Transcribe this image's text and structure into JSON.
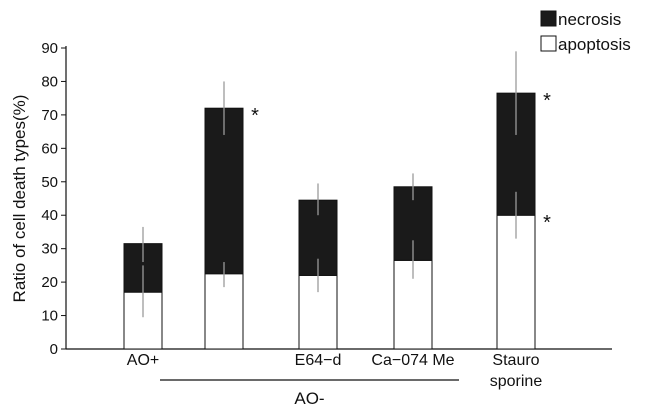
{
  "chart_data": {
    "type": "bar",
    "stacked": true,
    "ylabel": "Ratio of cell death types(%)",
    "ylim": [
      0,
      90
    ],
    "yticks": [
      0,
      10,
      20,
      30,
      40,
      50,
      60,
      70,
      80,
      90
    ],
    "categories": [
      "AO+",
      "",
      "E64−d",
      "Ca−074 Me",
      "Stauro sporine"
    ],
    "category_label_lines": [
      [
        "AO+"
      ],
      [],
      [
        "E64−d"
      ],
      [
        "Ca−074 Me"
      ],
      [
        "Stauro",
        "sporine"
      ]
    ],
    "group_label": "AO-",
    "group_indices": [
      1,
      2,
      3
    ],
    "series": [
      {
        "name": "apoptosis",
        "color": "#ffffff",
        "values": [
          17,
          22.5,
          22,
          26.5,
          40
        ],
        "error_low": [
          9.5,
          18.5,
          17,
          21,
          33
        ],
        "error_high": [
          25,
          26,
          27,
          32.5,
          47
        ]
      },
      {
        "name": "necrosis",
        "color": "#1a1a1a",
        "values": [
          14.5,
          49.5,
          22.5,
          22,
          36.5
        ],
        "error_low": [
          26,
          64,
          40,
          44.5,
          64
        ],
        "error_high": [
          36.5,
          80,
          49.5,
          52.5,
          89
        ]
      }
    ],
    "significance_marks": [
      {
        "category_index": 1,
        "series": "necrosis",
        "label": "*"
      },
      {
        "category_index": 4,
        "series": "necrosis",
        "label": "*"
      },
      {
        "category_index": 4,
        "series": "apoptosis",
        "label": "*"
      }
    ],
    "legend": {
      "position": "top-right",
      "entries": [
        {
          "label": "necrosis",
          "swatch": "#1a1a1a"
        },
        {
          "label": "apoptosis",
          "swatch": "#ffffff"
        }
      ]
    },
    "grid": false
  }
}
